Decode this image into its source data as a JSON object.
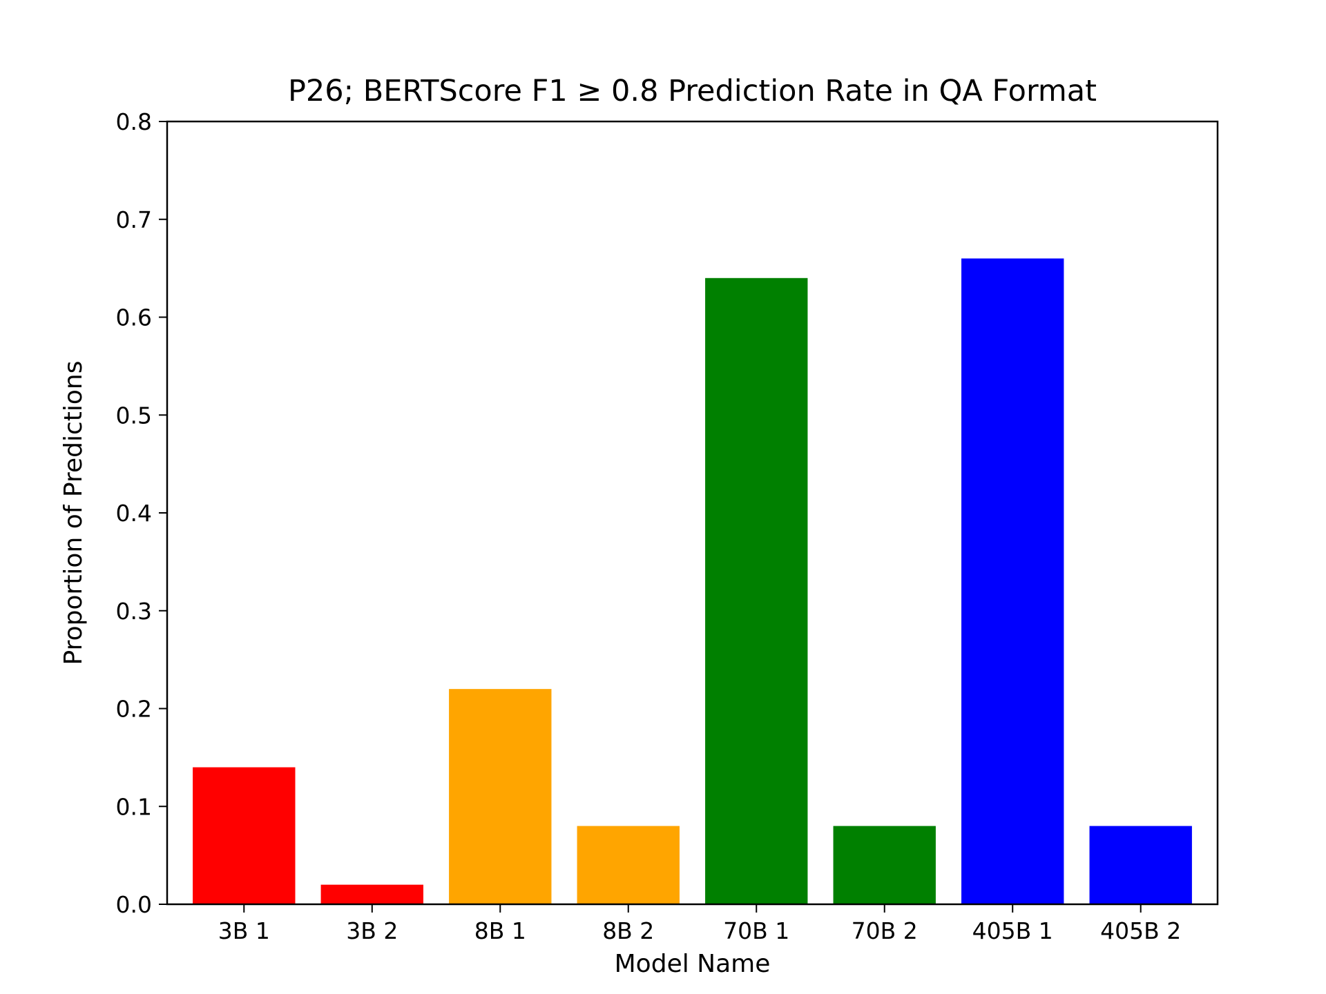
{
  "chart_data": {
    "type": "bar",
    "title": "P26; BERTScore F1 ≥ 0.8 Prediction Rate in QA Format",
    "xlabel": "Model Name",
    "ylabel": "Proportion of Predictions",
    "ylim": [
      0,
      0.8
    ],
    "yticks": [
      "0.0",
      "0.1",
      "0.2",
      "0.3",
      "0.4",
      "0.5",
      "0.6",
      "0.7",
      "0.8"
    ],
    "grid": false,
    "categories": [
      "3B 1",
      "3B 2",
      "8B 1",
      "8B 2",
      "70B 1",
      "70B 2",
      "405B 1",
      "405B 2"
    ],
    "values": [
      0.14,
      0.02,
      0.22,
      0.08,
      0.64,
      0.08,
      0.66,
      0.08
    ],
    "colors": [
      "#ff0000",
      "#ff0000",
      "#ffa500",
      "#ffa500",
      "#008000",
      "#008000",
      "#0000ff",
      "#0000ff"
    ]
  }
}
